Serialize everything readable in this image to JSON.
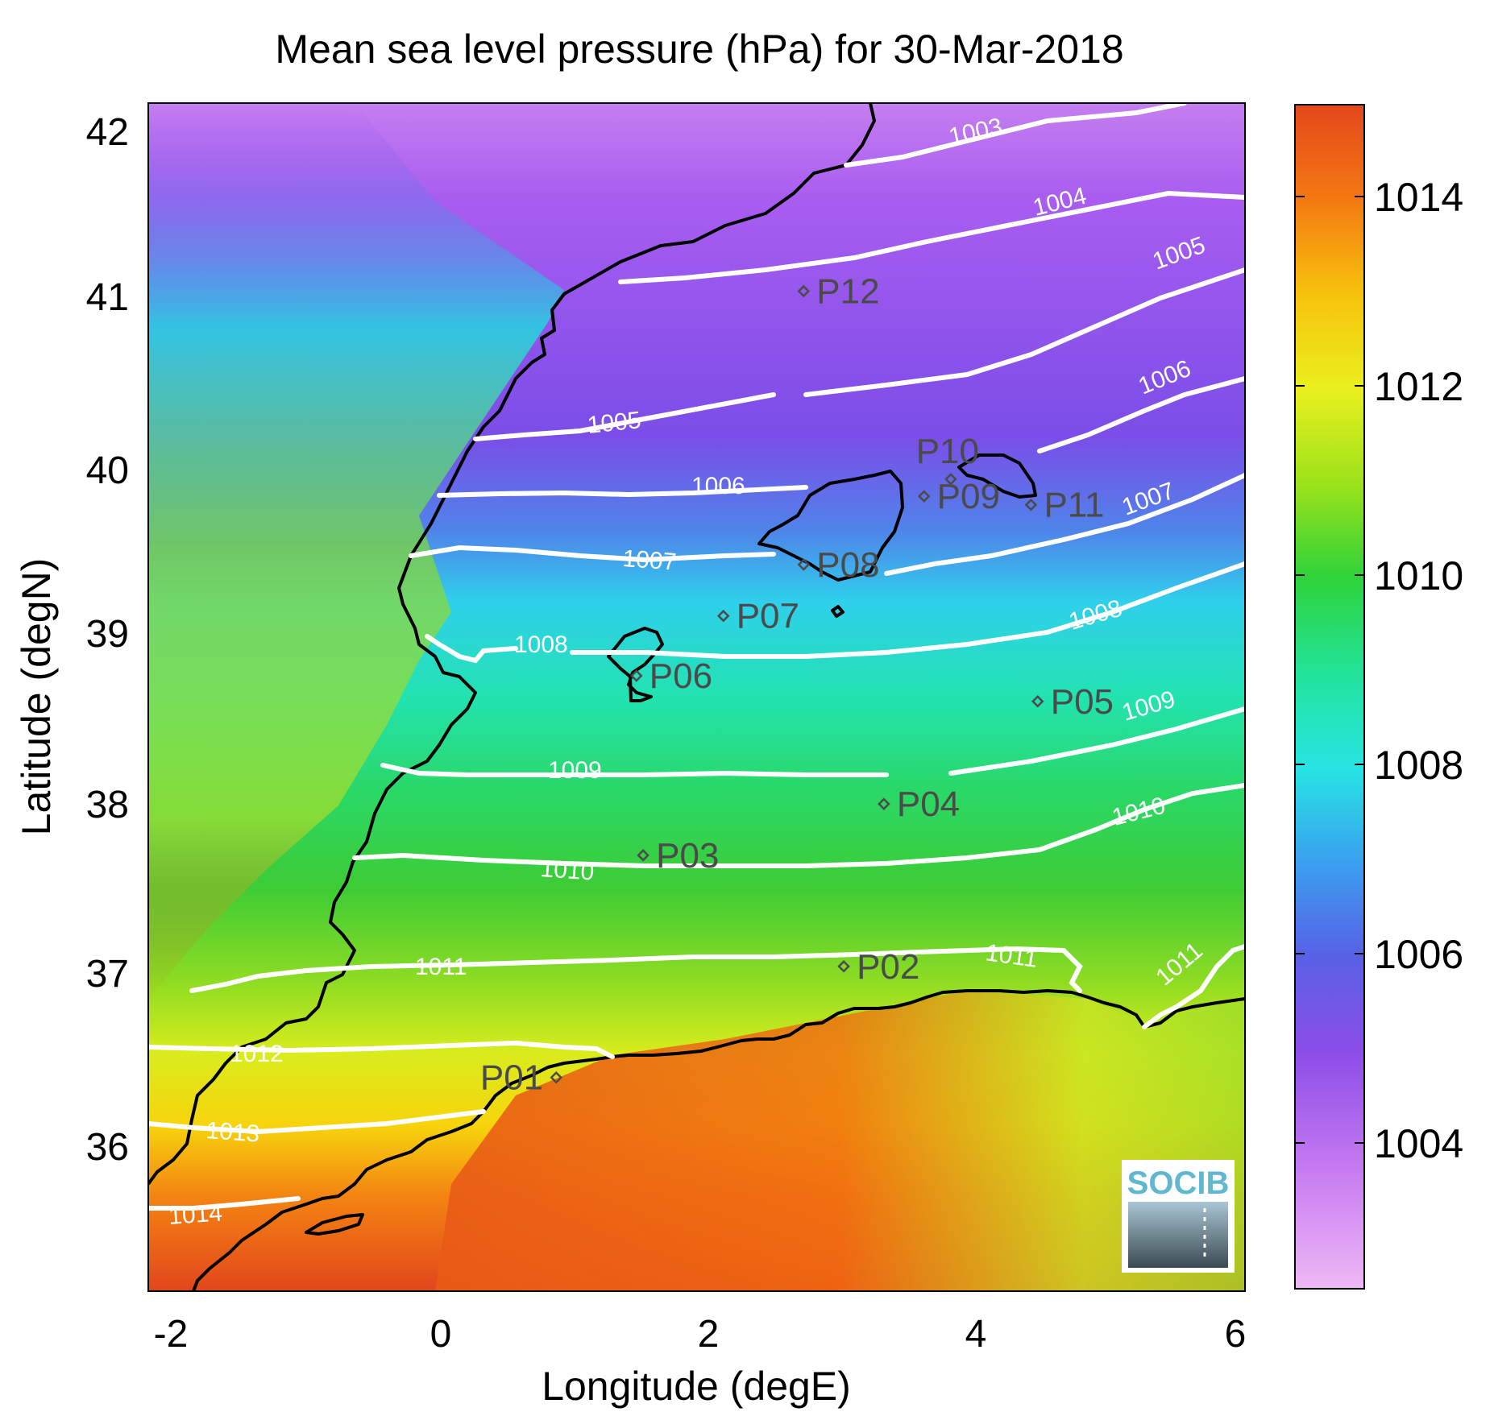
{
  "title": "Mean sea level pressure (hPa) for 30-Mar-2018",
  "xlabel": "Longitude (degE)",
  "ylabel": "Latitude (degN)",
  "logo": "SOCIB",
  "x_ticks": [
    "-2",
    "0",
    "2",
    "4",
    "6"
  ],
  "y_ticks": [
    "42",
    "41",
    "40",
    "39",
    "38",
    "37",
    "36"
  ],
  "colorbar_ticks": [
    "1014",
    "1012",
    "1010",
    "1008",
    "1006",
    "1004"
  ],
  "colors": {
    "coast": "#000000",
    "contour": "#ffffff",
    "station": "#4a4a4a",
    "colormap": [
      "#efb8f5",
      "#c77bf2",
      "#8c4de8",
      "#5860e6",
      "#3aa0f0",
      "#26e5e3",
      "#22e39a",
      "#2ed23a",
      "#9ce21a",
      "#eaf01e",
      "#f7c20c",
      "#f47912",
      "#e4471c"
    ]
  },
  "chart_data": {
    "type": "map",
    "xlim": [
      -2.2,
      6
    ],
    "ylim": [
      35.25,
      42.2
    ],
    "colorbar_range": [
      1002.3,
      1015
    ],
    "contours": [
      {
        "label": "1003"
      },
      {
        "label": "1004"
      },
      {
        "label": "1005"
      },
      {
        "label": "1005"
      },
      {
        "label": "1006"
      },
      {
        "label": "1006"
      },
      {
        "label": "1007"
      },
      {
        "label": "1007"
      },
      {
        "label": "1008"
      },
      {
        "label": "1008"
      },
      {
        "label": "1009"
      },
      {
        "label": "1009"
      },
      {
        "label": "1010"
      },
      {
        "label": "1010"
      },
      {
        "label": "1011"
      },
      {
        "label": "1011"
      },
      {
        "label": "1011"
      },
      {
        "label": "1012"
      },
      {
        "label": "1013"
      },
      {
        "label": "1014"
      }
    ],
    "stations": [
      {
        "name": "P01",
        "lon": 0.85,
        "lat": 36.5
      },
      {
        "name": "P02",
        "lon": 3.0,
        "lat": 37.15
      },
      {
        "name": "P03",
        "lon": 1.5,
        "lat": 37.8
      },
      {
        "name": "P04",
        "lon": 3.3,
        "lat": 38.1
      },
      {
        "name": "P05",
        "lon": 4.45,
        "lat": 38.7
      },
      {
        "name": "P06",
        "lon": 1.45,
        "lat": 38.85
      },
      {
        "name": "P07",
        "lon": 2.1,
        "lat": 39.2
      },
      {
        "name": "P08",
        "lon": 2.7,
        "lat": 39.5
      },
      {
        "name": "P09",
        "lon": 3.6,
        "lat": 39.9
      },
      {
        "name": "P10",
        "lon": 3.8,
        "lat": 40.0
      },
      {
        "name": "P11",
        "lon": 4.4,
        "lat": 39.85
      },
      {
        "name": "P12",
        "lon": 2.7,
        "lat": 41.1
      }
    ]
  }
}
